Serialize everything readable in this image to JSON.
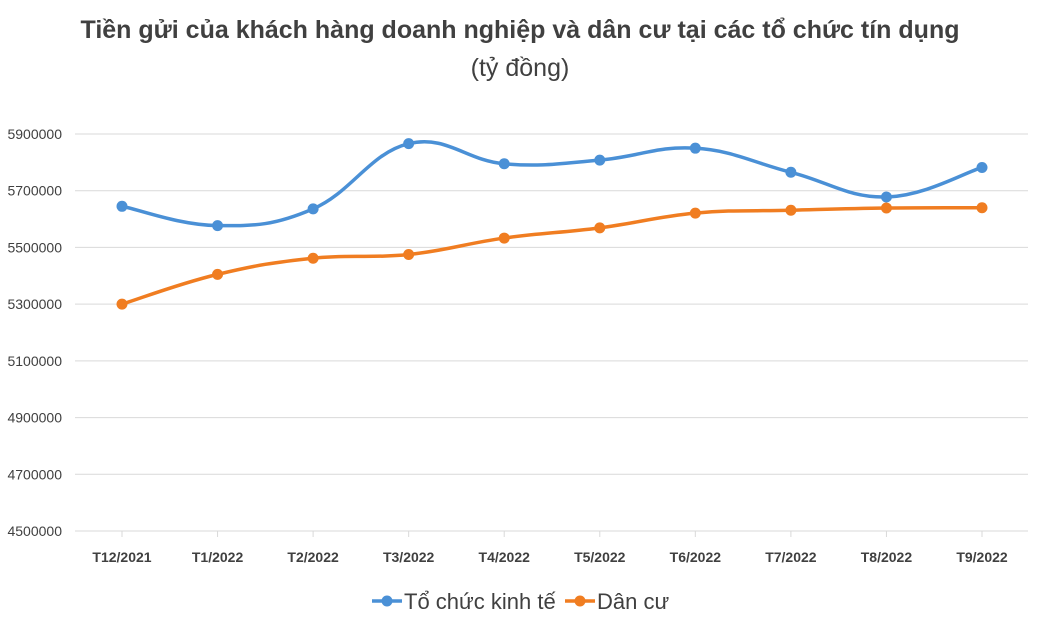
{
  "chart_data": {
    "type": "line",
    "title": "Tiền gửi của khách hàng doanh nghiệp và dân cư tại các tổ chức tín dụng",
    "subtitle": "(tỷ đồng)",
    "categories": [
      "T12/2021",
      "T1/2022",
      "T2/2022",
      "T3/2022",
      "T4/2022",
      "T5/2022",
      "T6/2022",
      "T7/2022",
      "T8/2022",
      "T9/2022"
    ],
    "series": [
      {
        "name": "Tổ chức kinh tế",
        "color": "#4a90d6",
        "values": [
          5645000,
          5577000,
          5636000,
          5866000,
          5795000,
          5808000,
          5850000,
          5765000,
          5678000,
          5782000
        ]
      },
      {
        "name": "Dân cư",
        "color": "#f07d21",
        "values": [
          5300000,
          5405000,
          5462000,
          5475000,
          5533000,
          5569000,
          5621000,
          5631000,
          5639000,
          5640000
        ]
      }
    ],
    "ylim": [
      4500000,
      5900000
    ],
    "yticks": [
      "4500000",
      "4700000",
      "4900000",
      "5100000",
      "5300000",
      "5500000",
      "5700000",
      "5900000"
    ],
    "grid": true,
    "legend_position": "bottom"
  }
}
